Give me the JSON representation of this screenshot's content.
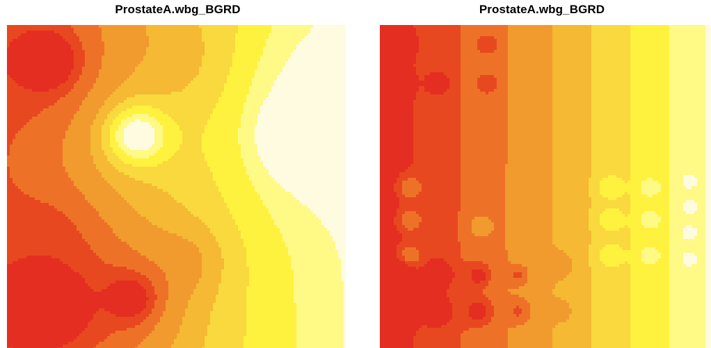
{
  "panels": [
    {
      "title": "ProstateA.wbg_BGRD",
      "chart_data": {
        "type": "heatmap",
        "title": "ProstateA.wbg_BGRD",
        "xlabel": "",
        "ylabel": "",
        "grid": false,
        "legend": "none",
        "palette": [
          "#E42E21",
          "#E8481F",
          "#ED7228",
          "#F19A2E",
          "#F5B933",
          "#F9D93E",
          "#FEF23E",
          "#FFF986",
          "#FFFBE0"
        ],
        "domain": [
          0,
          1
        ],
        "base_level": 0.62,
        "radial_gradient": [
          0.63,
          0.09
        ],
        "blobs": [
          [
            0.12,
            0.11,
            0.1,
            -0.4,
            0.92
          ],
          [
            0.12,
            0.11,
            0.25,
            -0.18,
            0.92
          ],
          [
            0.38,
            0.34,
            0.12,
            0.38,
            0.92
          ],
          [
            0.38,
            0.34,
            0.28,
            0.12,
            0.92
          ],
          [
            0.87,
            0.34,
            0.12,
            0.52,
            0.92
          ],
          [
            0.87,
            0.34,
            0.32,
            0.18,
            0.92
          ],
          [
            0.12,
            0.87,
            0.13,
            -0.35,
            0.92
          ],
          [
            0.12,
            0.87,
            0.32,
            -0.2,
            0.92
          ],
          [
            0.37,
            0.84,
            0.1,
            -0.3,
            0.92
          ],
          [
            0.37,
            0.84,
            0.28,
            -0.15,
            0.92
          ],
          [
            0.15,
            0.62,
            0.18,
            -0.08,
            0.92
          ],
          [
            0.55,
            0.72,
            0.15,
            -0.1,
            0.92
          ],
          [
            0.52,
            0.12,
            0.22,
            -0.06,
            0.92
          ],
          [
            0.88,
            0.1,
            0.25,
            0.05,
            0.92
          ]
        ],
        "thresholds": [
          0.18,
          0.3,
          0.42,
          0.54,
          0.64,
          0.74,
          0.84,
          0.93
        ]
      }
    },
    {
      "title": "ProstateA.wbg_BGRD",
      "chart_data": {
        "type": "heatmap",
        "title": "ProstateA.wbg_BGRD",
        "xlabel": "",
        "ylabel": "",
        "grid": false,
        "legend": "none",
        "palette": [
          "#E42E21",
          "#E8481F",
          "#ED7228",
          "#F19A2E",
          "#F5B933",
          "#F9D93E",
          "#FEF23E",
          "#FFF986",
          "#FFFBE0"
        ],
        "domain": [
          0,
          1
        ],
        "base_level": 0.52,
        "radial_gradient": [
          0.85,
          0.3
        ],
        "blobs": [
          [
            0.06,
            0.06,
            0.05,
            -0.25,
            0.95
          ],
          [
            0.06,
            0.18,
            0.05,
            -0.2,
            0.95
          ],
          [
            0.18,
            0.18,
            0.05,
            -0.2,
            0.95
          ],
          [
            0.06,
            0.77,
            0.06,
            -0.3,
            0.95
          ],
          [
            0.18,
            0.77,
            0.06,
            -0.3,
            0.95
          ],
          [
            0.3,
            0.77,
            0.05,
            -0.25,
            0.95
          ],
          [
            0.42,
            0.77,
            0.04,
            -0.18,
            0.95
          ],
          [
            0.06,
            0.88,
            0.06,
            -0.3,
            0.95
          ],
          [
            0.18,
            0.88,
            0.06,
            -0.28,
            0.95
          ],
          [
            0.3,
            0.88,
            0.06,
            -0.25,
            0.95
          ],
          [
            0.42,
            0.88,
            0.05,
            -0.18,
            0.95
          ],
          [
            0.55,
            0.88,
            0.04,
            -0.12,
            0.95
          ],
          [
            0.09,
            0.5,
            0.05,
            0.25,
            0.92
          ],
          [
            0.09,
            0.6,
            0.05,
            0.25,
            0.92
          ],
          [
            0.09,
            0.71,
            0.05,
            0.25,
            0.92
          ],
          [
            0.69,
            0.5,
            0.05,
            0.15,
            0.92
          ],
          [
            0.69,
            0.6,
            0.05,
            0.15,
            0.92
          ],
          [
            0.69,
            0.71,
            0.05,
            0.15,
            0.92
          ],
          [
            0.81,
            0.5,
            0.04,
            0.14,
            0.92
          ],
          [
            0.81,
            0.6,
            0.04,
            0.14,
            0.92
          ],
          [
            0.81,
            0.71,
            0.04,
            0.14,
            0.92
          ],
          [
            0.93,
            0.48,
            0.03,
            0.12,
            0.92
          ],
          [
            0.93,
            0.56,
            0.03,
            0.12,
            0.92
          ],
          [
            0.93,
            0.64,
            0.03,
            0.12,
            0.92
          ],
          [
            0.93,
            0.72,
            0.03,
            0.12,
            0.92
          ],
          [
            0.33,
            0.06,
            0.05,
            -0.15,
            0.95
          ],
          [
            0.33,
            0.18,
            0.05,
            -0.15,
            0.95
          ],
          [
            0.3,
            0.62,
            0.05,
            0.15,
            0.92
          ],
          [
            0.55,
            0.74,
            0.05,
            -0.12,
            0.95
          ]
        ],
        "thresholds": [
          0.18,
          0.3,
          0.42,
          0.54,
          0.64,
          0.74,
          0.84,
          0.93
        ]
      }
    }
  ]
}
